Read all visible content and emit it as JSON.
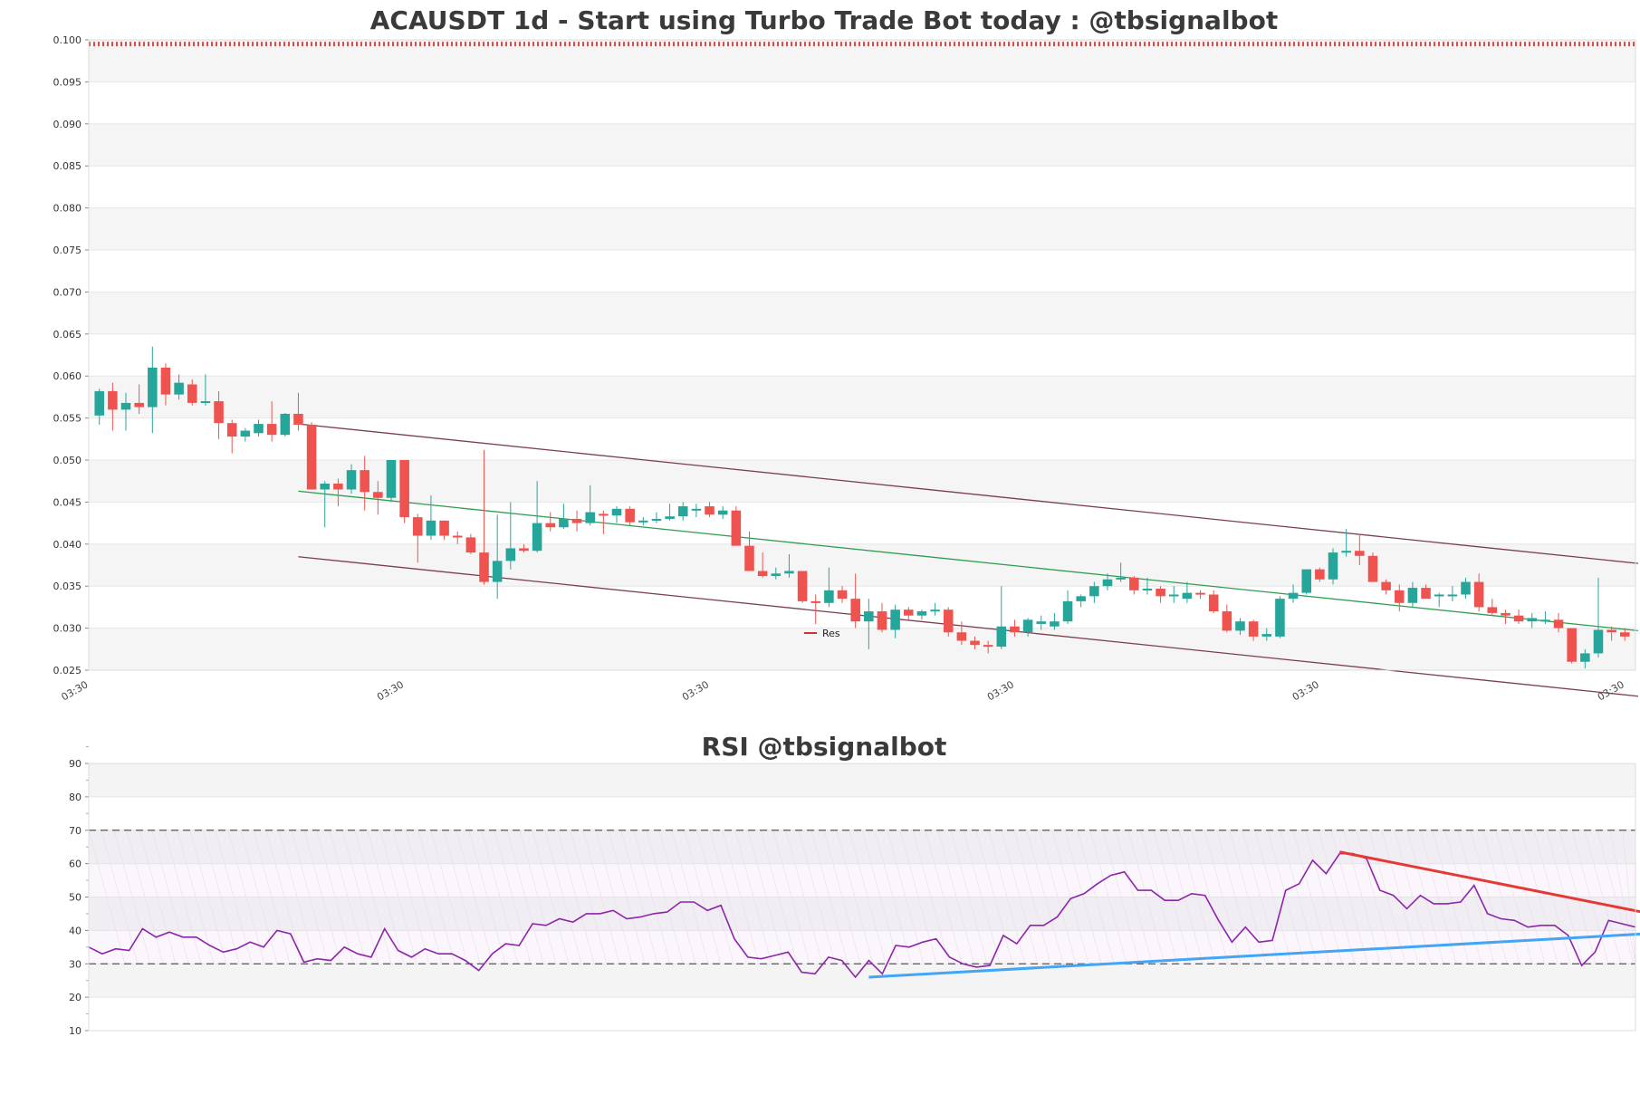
{
  "chart_data": [
    {
      "type": "candlestick",
      "title": "ACAUSDT 1d - Start using Turbo Trade Bot today : @tbsignalbot",
      "ylim": [
        0.025,
        0.1
      ],
      "yticks": [
        "0.025",
        "0.030",
        "0.035",
        "0.040",
        "0.045",
        "0.050",
        "0.055",
        "0.060",
        "0.065",
        "0.070",
        "0.075",
        "0.080",
        "0.085",
        "0.090",
        "0.095",
        "0.100"
      ],
      "xtick_labels": [
        "03:30",
        "03:30",
        "03:30",
        "03:30",
        "03:30",
        "03:30"
      ],
      "xtick_index": [
        0,
        23,
        46,
        69,
        92,
        115
      ],
      "ohlc": [
        [
          0.0553,
          0.0585,
          0.0542,
          0.0582
        ],
        [
          0.0582,
          0.0592,
          0.0535,
          0.056
        ],
        [
          0.056,
          0.058,
          0.0535,
          0.0568
        ],
        [
          0.0568,
          0.059,
          0.0555,
          0.0563
        ],
        [
          0.0563,
          0.0635,
          0.0532,
          0.061
        ],
        [
          0.061,
          0.0615,
          0.0565,
          0.0578
        ],
        [
          0.0578,
          0.0602,
          0.0572,
          0.0592
        ],
        [
          0.059,
          0.0596,
          0.0565,
          0.0568
        ],
        [
          0.0568,
          0.0602,
          0.0565,
          0.057
        ],
        [
          0.057,
          0.0582,
          0.0525,
          0.0544
        ],
        [
          0.0544,
          0.0548,
          0.0508,
          0.0528
        ],
        [
          0.0528,
          0.0538,
          0.0522,
          0.0535
        ],
        [
          0.0532,
          0.0548,
          0.0528,
          0.0543
        ],
        [
          0.0543,
          0.057,
          0.0522,
          0.053
        ],
        [
          0.053,
          0.0556,
          0.0528,
          0.0555
        ],
        [
          0.0555,
          0.058,
          0.0535,
          0.0542
        ],
        [
          0.0542,
          0.0545,
          0.0465,
          0.0465
        ],
        [
          0.0465,
          0.0475,
          0.042,
          0.0472
        ],
        [
          0.0472,
          0.0478,
          0.0445,
          0.0465
        ],
        [
          0.0465,
          0.0495,
          0.046,
          0.0488
        ],
        [
          0.0488,
          0.0505,
          0.044,
          0.0462
        ],
        [
          0.0462,
          0.0475,
          0.0435,
          0.0455
        ],
        [
          0.0455,
          0.05,
          0.045,
          0.05
        ],
        [
          0.05,
          0.05,
          0.0425,
          0.0432
        ],
        [
          0.0432,
          0.0436,
          0.0378,
          0.041
        ],
        [
          0.041,
          0.0458,
          0.0405,
          0.0428
        ],
        [
          0.0428,
          0.0428,
          0.0405,
          0.041
        ],
        [
          0.041,
          0.0415,
          0.04,
          0.0408
        ],
        [
          0.0408,
          0.0412,
          0.0388,
          0.039
        ],
        [
          0.039,
          0.0512,
          0.0352,
          0.0355
        ],
        [
          0.0355,
          0.0435,
          0.0335,
          0.038
        ],
        [
          0.038,
          0.045,
          0.037,
          0.0395
        ],
        [
          0.0395,
          0.04,
          0.039,
          0.0392
        ],
        [
          0.0392,
          0.0475,
          0.039,
          0.0425
        ],
        [
          0.0425,
          0.0438,
          0.0415,
          0.042
        ],
        [
          0.042,
          0.0448,
          0.0418,
          0.043
        ],
        [
          0.043,
          0.044,
          0.0415,
          0.0425
        ],
        [
          0.0425,
          0.047,
          0.0422,
          0.0438
        ],
        [
          0.0436,
          0.044,
          0.0412,
          0.0434
        ],
        [
          0.0434,
          0.0445,
          0.0425,
          0.0442
        ],
        [
          0.0442,
          0.0445,
          0.0422,
          0.0426
        ],
        [
          0.0426,
          0.0432,
          0.0422,
          0.0428
        ],
        [
          0.0428,
          0.0438,
          0.0425,
          0.043
        ],
        [
          0.043,
          0.0448,
          0.0428,
          0.0433
        ],
        [
          0.0433,
          0.045,
          0.0428,
          0.0445
        ],
        [
          0.044,
          0.0448,
          0.0432,
          0.0442
        ],
        [
          0.0445,
          0.045,
          0.0432,
          0.0435
        ],
        [
          0.0435,
          0.0445,
          0.043,
          0.044
        ],
        [
          0.044,
          0.0445,
          0.0398,
          0.0398
        ],
        [
          0.0398,
          0.0415,
          0.0368,
          0.0368
        ],
        [
          0.0368,
          0.039,
          0.036,
          0.0362
        ],
        [
          0.0362,
          0.0372,
          0.0358,
          0.0365
        ],
        [
          0.0365,
          0.0388,
          0.036,
          0.0368
        ],
        [
          0.0368,
          0.0368,
          0.033,
          0.0332
        ],
        [
          0.0332,
          0.034,
          0.0305,
          0.033
        ],
        [
          0.033,
          0.0372,
          0.0325,
          0.0345
        ],
        [
          0.0345,
          0.035,
          0.033,
          0.0335
        ],
        [
          0.0335,
          0.0365,
          0.03,
          0.0308
        ],
        [
          0.0308,
          0.0335,
          0.0275,
          0.032
        ],
        [
          0.032,
          0.033,
          0.0295,
          0.0298
        ],
        [
          0.0298,
          0.0328,
          0.0288,
          0.0322
        ],
        [
          0.0322,
          0.0325,
          0.031,
          0.0315
        ],
        [
          0.0315,
          0.0322,
          0.031,
          0.032
        ],
        [
          0.032,
          0.033,
          0.0315,
          0.0322
        ],
        [
          0.0322,
          0.0325,
          0.029,
          0.0295
        ],
        [
          0.0295,
          0.0308,
          0.028,
          0.0285
        ],
        [
          0.0285,
          0.029,
          0.0275,
          0.028
        ],
        [
          0.028,
          0.0285,
          0.027,
          0.0278
        ],
        [
          0.0278,
          0.035,
          0.0275,
          0.0302
        ],
        [
          0.0302,
          0.031,
          0.029,
          0.0295
        ],
        [
          0.0295,
          0.0312,
          0.029,
          0.031
        ],
        [
          0.0305,
          0.0315,
          0.0298,
          0.0308
        ],
        [
          0.0302,
          0.0318,
          0.0298,
          0.0308
        ],
        [
          0.0308,
          0.0345,
          0.0305,
          0.0332
        ],
        [
          0.0332,
          0.034,
          0.0325,
          0.0338
        ],
        [
          0.0338,
          0.0355,
          0.033,
          0.035
        ],
        [
          0.035,
          0.0365,
          0.0345,
          0.0358
        ],
        [
          0.0358,
          0.0378,
          0.0355,
          0.036
        ],
        [
          0.036,
          0.0362,
          0.034,
          0.0345
        ],
        [
          0.0345,
          0.036,
          0.034,
          0.0347
        ],
        [
          0.0347,
          0.035,
          0.033,
          0.0338
        ],
        [
          0.0338,
          0.035,
          0.033,
          0.034
        ],
        [
          0.0335,
          0.0355,
          0.033,
          0.0342
        ],
        [
          0.0342,
          0.0345,
          0.0335,
          0.034
        ],
        [
          0.034,
          0.0345,
          0.0318,
          0.032
        ],
        [
          0.032,
          0.0328,
          0.0295,
          0.0297
        ],
        [
          0.0297,
          0.0312,
          0.0292,
          0.0308
        ],
        [
          0.0308,
          0.031,
          0.0285,
          0.029
        ],
        [
          0.029,
          0.03,
          0.0285,
          0.0293
        ],
        [
          0.029,
          0.0338,
          0.0288,
          0.0335
        ],
        [
          0.0335,
          0.0352,
          0.033,
          0.0342
        ],
        [
          0.0342,
          0.037,
          0.034,
          0.037
        ],
        [
          0.037,
          0.0372,
          0.0355,
          0.0358
        ],
        [
          0.0358,
          0.0395,
          0.0352,
          0.039
        ],
        [
          0.039,
          0.0418,
          0.0385,
          0.0392
        ],
        [
          0.0392,
          0.0412,
          0.0375,
          0.0386
        ],
        [
          0.0386,
          0.039,
          0.0355,
          0.0355
        ],
        [
          0.0355,
          0.0358,
          0.034,
          0.0345
        ],
        [
          0.0345,
          0.0352,
          0.032,
          0.033
        ],
        [
          0.033,
          0.0355,
          0.0325,
          0.0348
        ],
        [
          0.0348,
          0.0352,
          0.0335,
          0.0335
        ],
        [
          0.0338,
          0.0342,
          0.0325,
          0.034
        ],
        [
          0.0338,
          0.035,
          0.0332,
          0.034
        ],
        [
          0.034,
          0.036,
          0.0335,
          0.0355
        ],
        [
          0.0355,
          0.0365,
          0.032,
          0.0325
        ],
        [
          0.0325,
          0.0335,
          0.0315,
          0.0318
        ],
        [
          0.0318,
          0.0322,
          0.0305,
          0.0315
        ],
        [
          0.0315,
          0.0322,
          0.0305,
          0.0308
        ],
        [
          0.0308,
          0.0318,
          0.03,
          0.0312
        ],
        [
          0.0308,
          0.032,
          0.0305,
          0.031
        ],
        [
          0.031,
          0.0318,
          0.0295,
          0.03
        ],
        [
          0.03,
          0.03,
          0.0258,
          0.026
        ],
        [
          0.026,
          0.0275,
          0.0252,
          0.027
        ],
        [
          0.027,
          0.036,
          0.0265,
          0.0298
        ],
        [
          0.0298,
          0.0302,
          0.0285,
          0.0295
        ],
        [
          0.0295,
          0.03,
          0.0285,
          0.029
        ]
      ],
      "colors": {
        "up": "#26a69a",
        "down": "#ef5350"
      },
      "resistance": {
        "value": 0.0995,
        "color": "#d32f2f"
      },
      "legend": {
        "label": "Res",
        "color": "#d32f2f"
      },
      "channel": {
        "start_index": 15,
        "end_index": 116,
        "upper": [
          0.0543,
          0.0377
        ],
        "middle": [
          0.0463,
          0.0297
        ],
        "lower": [
          0.0385,
          0.0219
        ],
        "outer_color": "#7b3f4f",
        "middle_color": "#2e9e4e"
      }
    },
    {
      "type": "line",
      "title": "RSI @tbsignalbot",
      "ylim": [
        10,
        90
      ],
      "yticks": [
        "10",
        "20",
        "30",
        "40",
        "50",
        "60",
        "70",
        "80",
        "90"
      ],
      "levels": [
        30,
        70
      ],
      "series": [
        {
          "values": [
            35,
            33,
            34.5,
            34,
            40.5,
            38,
            39.5,
            38,
            38,
            35.5,
            33.5,
            34.5,
            36.5,
            35,
            40,
            39,
            30.5,
            31.5,
            31,
            35,
            33,
            32,
            40.5,
            34,
            32,
            34.5,
            33,
            33,
            31,
            28,
            33,
            36,
            35.5,
            42,
            41.5,
            43.5,
            42.5,
            45,
            45,
            46,
            43.5,
            44,
            45,
            45.5,
            48.5,
            48.5,
            46,
            47.5,
            37.5,
            32,
            31.5,
            32.5,
            33.5,
            27.5,
            27,
            32,
            31,
            26,
            31,
            27,
            35.5,
            35,
            36.5,
            37.5,
            32,
            30,
            29,
            29.5,
            38.5,
            36,
            41.5,
            41.5,
            44,
            49.5,
            51,
            54,
            56.5,
            57.5,
            52,
            52,
            49,
            49,
            51,
            50.5,
            43,
            36.5,
            41,
            36.5,
            37,
            52,
            54,
            61,
            57,
            63,
            63,
            61.5,
            52,
            50.5,
            46.5,
            50.5,
            48,
            48,
            48.5,
            53.5,
            45,
            43.5,
            43,
            41,
            41.5,
            41.5,
            38.5,
            29.5,
            33.5,
            43,
            42,
            41
          ],
          "color": "#8e24aa"
        }
      ],
      "trendlines": [
        {
          "from": [
            58,
            26
          ],
          "to": [
            118,
            39.5
          ],
          "color": "#42a5f5"
        },
        {
          "from": [
            93,
            63.5
          ],
          "to": [
            118,
            43.5
          ],
          "color": "#e53935"
        }
      ]
    }
  ]
}
